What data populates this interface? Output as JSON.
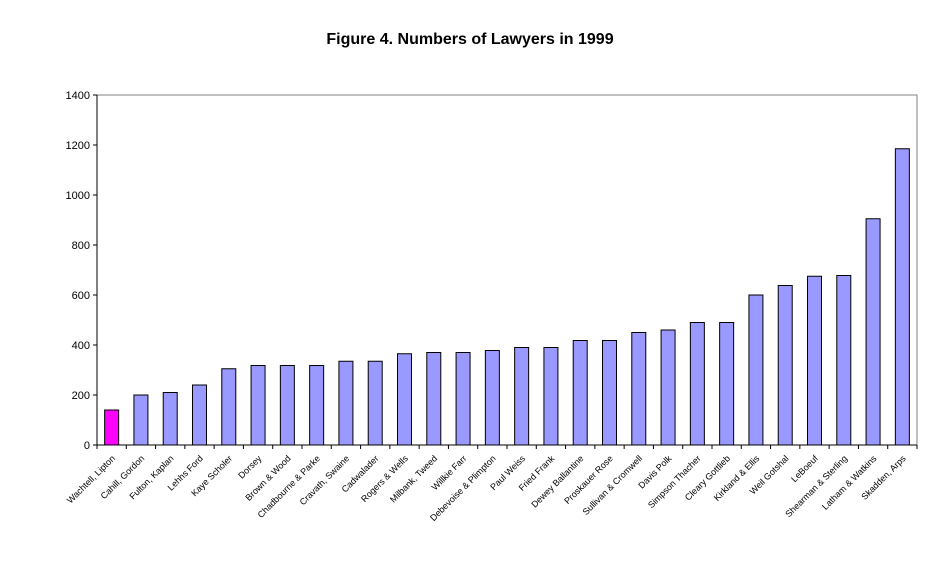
{
  "chart_data": {
    "type": "bar",
    "title": "Figure 4. Numbers of Lawyers in 1999",
    "xlabel": "",
    "ylabel": "",
    "ylim": [
      0,
      1400
    ],
    "yticks": [
      0,
      200,
      400,
      600,
      800,
      1000,
      1200,
      1400
    ],
    "grid": false,
    "legend": "none",
    "colors": {
      "default": "#9999FF",
      "highlight": "#FF00FF"
    },
    "highlight_index": 0,
    "categories": [
      "Wachtell, Lipton",
      "Cahill, Gordon",
      "Fulton, Kaplan",
      "Lehhs Ford",
      "Kaye Scholer",
      "Dorsey",
      "Brown & Wood",
      "Chadbourne & Parke",
      "Cravath, Swaine",
      "Cadwalader",
      "Rogers & Wells",
      "Milbank, Tweed",
      "Willkie Farr",
      "Debevoise & Plimpton",
      "Paul Weiss",
      "Fried Frank",
      "Dewey Ballantine",
      "Proskauer Rose",
      "Sullivan & Cromwell",
      "Davis Polk",
      "Simpson Thacher",
      "Cleary Gottlieb",
      "Kirkland & Ellis",
      "Weil Gotshal",
      "LeBoeuf",
      "Shearman & Sterling",
      "Latham & Watkins",
      "Skadden, Arps"
    ],
    "values": [
      140,
      200,
      210,
      240,
      305,
      318,
      318,
      318,
      335,
      335,
      365,
      370,
      370,
      378,
      390,
      390,
      418,
      418,
      450,
      460,
      490,
      490,
      600,
      638,
      675,
      678,
      905,
      1185
    ]
  }
}
